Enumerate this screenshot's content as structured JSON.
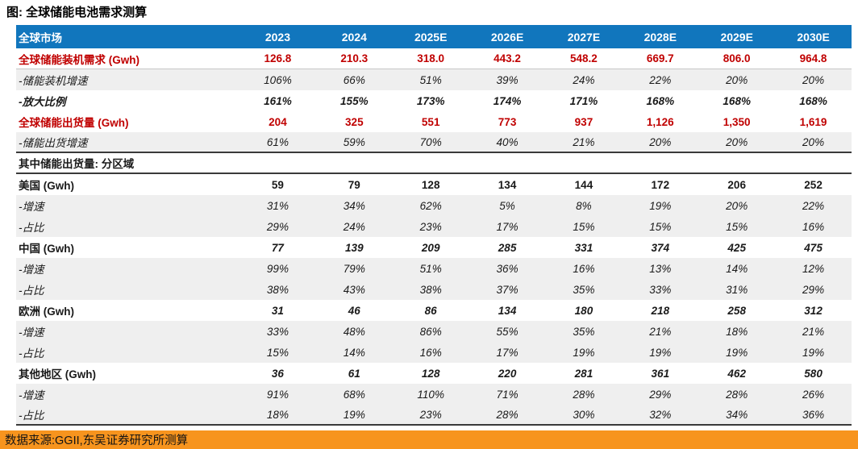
{
  "title": "图: 全球储能电池需求测算",
  "footer": {
    "source_text": "数据来源:GGII,东吴证券研究所测算"
  },
  "colors": {
    "header_bg": "#1176BD",
    "accent_red": "#C00000",
    "row_alt_bg": "#EFEFEF",
    "footer_bg": "#F7941E",
    "divider_dark": "#3a3a3a"
  },
  "chart_data": {
    "type": "table",
    "title": "全球储能电池需求测算",
    "header_label": "全球市场",
    "columns": [
      "2023",
      "2024",
      "2025E",
      "2026E",
      "2027E",
      "2028E",
      "2029E",
      "2030E"
    ],
    "rows": [
      {
        "label": "全球储能装机需求 (Gwh)",
        "values": [
          "126.8",
          "210.3",
          "318.0",
          "443.2",
          "548.2",
          "669.7",
          "806.0",
          "964.8"
        ],
        "style": "red-bold",
        "bg": "white",
        "divider": "thin"
      },
      {
        "label": "-储能装机增速",
        "values": [
          "106%",
          "66%",
          "51%",
          "39%",
          "24%",
          "22%",
          "20%",
          "20%"
        ],
        "style": "italic",
        "bg": "gray"
      },
      {
        "label": "-放大比例",
        "values": [
          "161%",
          "155%",
          "173%",
          "174%",
          "171%",
          "168%",
          "168%",
          "168%"
        ],
        "style": "bold-italic",
        "bg": "white"
      },
      {
        "label": "全球储能出货量 (Gwh)",
        "values": [
          "204",
          "325",
          "551",
          "773",
          "937",
          "1,126",
          "1,350",
          "1,619"
        ],
        "style": "red-bold",
        "bg": "white"
      },
      {
        "label": "-储能出货增速",
        "values": [
          "61%",
          "59%",
          "70%",
          "40%",
          "21%",
          "20%",
          "20%",
          "20%"
        ],
        "style": "italic",
        "bg": "gray",
        "divider": "dark"
      },
      {
        "label": "其中储能出货量: 分区域",
        "values": [],
        "style": "section",
        "bg": "white",
        "divider": "dark"
      },
      {
        "label": "美国 (Gwh)",
        "values": [
          "59",
          "79",
          "128",
          "134",
          "144",
          "172",
          "206",
          "252"
        ],
        "style": "bold",
        "bg": "white"
      },
      {
        "label": "-增速",
        "values": [
          "31%",
          "34%",
          "62%",
          "5%",
          "8%",
          "19%",
          "20%",
          "22%"
        ],
        "style": "italic",
        "bg": "gray"
      },
      {
        "label": "-占比",
        "values": [
          "29%",
          "24%",
          "23%",
          "17%",
          "15%",
          "15%",
          "15%",
          "16%"
        ],
        "style": "italic",
        "bg": "gray"
      },
      {
        "label": "中国 (Gwh)",
        "values": [
          "77",
          "139",
          "209",
          "285",
          "331",
          "374",
          "425",
          "475"
        ],
        "style": "bold-vi",
        "bg": "white"
      },
      {
        "label": "-增速",
        "values": [
          "99%",
          "79%",
          "51%",
          "36%",
          "16%",
          "13%",
          "14%",
          "12%"
        ],
        "style": "italic",
        "bg": "gray"
      },
      {
        "label": "-占比",
        "values": [
          "38%",
          "43%",
          "38%",
          "37%",
          "35%",
          "33%",
          "31%",
          "29%"
        ],
        "style": "italic",
        "bg": "gray"
      },
      {
        "label": "欧洲 (Gwh)",
        "values": [
          "31",
          "46",
          "86",
          "134",
          "180",
          "218",
          "258",
          "312"
        ],
        "style": "bold-vi",
        "bg": "white"
      },
      {
        "label": "-增速",
        "values": [
          "33%",
          "48%",
          "86%",
          "55%",
          "35%",
          "21%",
          "18%",
          "21%"
        ],
        "style": "italic",
        "bg": "gray"
      },
      {
        "label": "-占比",
        "values": [
          "15%",
          "14%",
          "16%",
          "17%",
          "19%",
          "19%",
          "19%",
          "19%"
        ],
        "style": "italic",
        "bg": "gray"
      },
      {
        "label": "其他地区 (Gwh)",
        "values": [
          "36",
          "61",
          "128",
          "220",
          "281",
          "361",
          "462",
          "580"
        ],
        "style": "bold-vi",
        "bg": "white"
      },
      {
        "label": "-增速",
        "values": [
          "91%",
          "68%",
          "110%",
          "71%",
          "28%",
          "29%",
          "28%",
          "26%"
        ],
        "style": "italic",
        "bg": "gray"
      },
      {
        "label": "-占比",
        "values": [
          "18%",
          "19%",
          "23%",
          "28%",
          "30%",
          "32%",
          "34%",
          "36%"
        ],
        "style": "italic",
        "bg": "gray",
        "divider": "dark"
      }
    ]
  }
}
